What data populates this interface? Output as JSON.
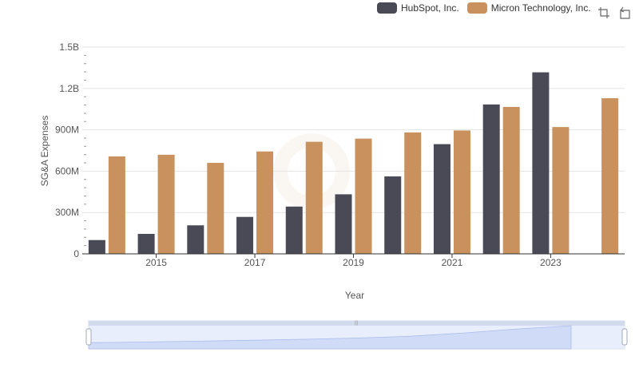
{
  "legend": [
    {
      "label": "HubSpot, Inc.",
      "color": "#4a4a56"
    },
    {
      "label": "Micron Technology, Inc.",
      "color": "#c8915d"
    }
  ],
  "toolbox": {
    "zoom_icon": "zoom-icon",
    "restore_icon": "restore-icon"
  },
  "chart_data": {
    "type": "bar",
    "xlabel": "Year",
    "ylabel": "SG&A Expenses",
    "ylim": [
      0,
      1500000000
    ],
    "y_ticks": [
      "0",
      "300M",
      "600M",
      "900M",
      "1.2B",
      "1.5B"
    ],
    "x_tick_labels": [
      "2015",
      "2017",
      "2019",
      "2021",
      "2023"
    ],
    "categories": [
      "2014",
      "2015",
      "2016",
      "2017",
      "2018",
      "2019",
      "2020",
      "2021",
      "2022",
      "2023",
      "2024"
    ],
    "series": [
      {
        "name": "HubSpot, Inc.",
        "color": "#4a4a56",
        "values": [
          100000000,
          145000000,
          207000000,
          268000000,
          343000000,
          432000000,
          562000000,
          796000000,
          1084000000,
          1317000000,
          null
        ]
      },
      {
        "name": "Micron Technology, Inc.",
        "color": "#c8915d",
        "values": [
          707000000,
          719000000,
          660000000,
          743000000,
          813000000,
          836000000,
          881000000,
          895000000,
          1066000000,
          920000000,
          1129000000
        ]
      }
    ],
    "grid": true,
    "legend_position": "top-right"
  }
}
